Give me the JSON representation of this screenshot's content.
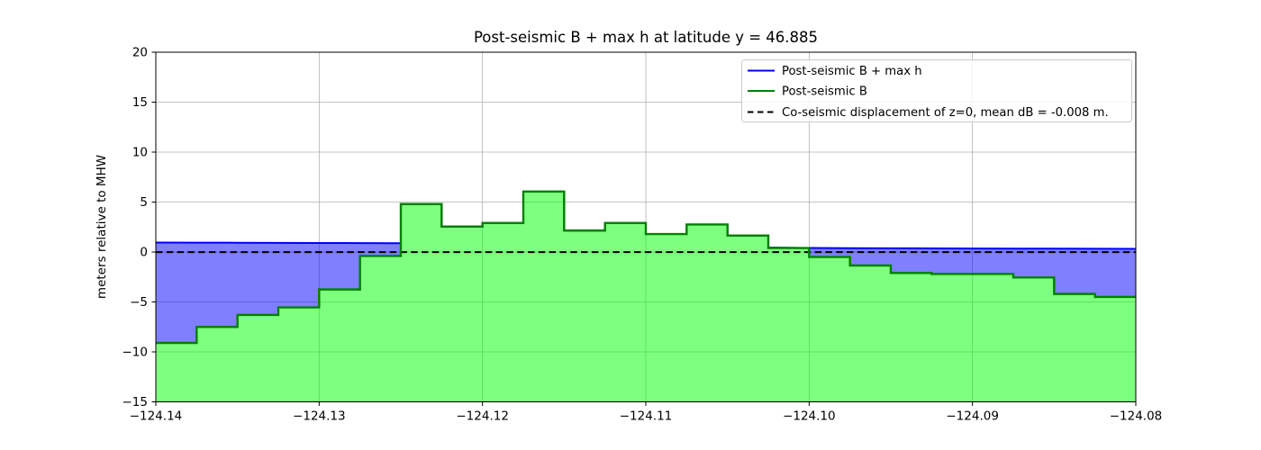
{
  "chart_data": {
    "type": "area",
    "title": "Post-seismic B + max h at latitude y = 46.885",
    "xlabel": "",
    "ylabel": "meters relative to MHW",
    "xlim": [
      -124.14,
      -124.08
    ],
    "ylim": [
      -15,
      20
    ],
    "grid": true,
    "x_ticks": [
      {
        "v": -124.14,
        "label": "−124.14"
      },
      {
        "v": -124.13,
        "label": "−124.13"
      },
      {
        "v": -124.12,
        "label": "−124.12"
      },
      {
        "v": -124.11,
        "label": "−124.11"
      },
      {
        "v": -124.1,
        "label": "−124.10"
      },
      {
        "v": -124.09,
        "label": "−124.09"
      },
      {
        "v": -124.08,
        "label": "−124.08"
      }
    ],
    "y_ticks": [
      {
        "v": 20,
        "label": "20"
      },
      {
        "v": 15,
        "label": "15"
      },
      {
        "v": 10,
        "label": "10"
      },
      {
        "v": 5,
        "label": "5"
      },
      {
        "v": 0,
        "label": "0"
      },
      {
        "v": -5,
        "label": "−5"
      },
      {
        "v": -10,
        "label": "−10"
      },
      {
        "v": -15,
        "label": "−15"
      }
    ],
    "legend": {
      "position": "upper right",
      "entries": [
        {
          "label": "Post-seismic B + max h",
          "color": "#0000ff",
          "style": "solid"
        },
        {
          "label": "Post-seismic B",
          "color": "#008000",
          "style": "solid"
        },
        {
          "label": "Co-seismic displacement of z=0, mean dB = -0.008 m.",
          "color": "#000000",
          "style": "dashed"
        }
      ]
    },
    "series": {
      "post_seismic_B": {
        "name": "Post-seismic B",
        "x_start": -124.14,
        "step_width": 0.0025,
        "values": [
          -9.1,
          -7.5,
          -6.3,
          -5.55,
          -3.75,
          -0.4,
          4.8,
          2.55,
          2.9,
          6.05,
          2.15,
          2.9,
          1.8,
          2.75,
          1.65,
          0.4,
          -0.5,
          -1.35,
          -2.1,
          -2.2,
          -2.2,
          -2.55,
          -4.2,
          -4.5
        ]
      },
      "B_plus_max_h_waterline": {
        "name": "Post-seismic B + max h",
        "x": [
          -124.14,
          -124.125,
          -124.1,
          -124.09,
          -124.08
        ],
        "y": [
          0.95,
          0.88,
          0.4,
          0.35,
          0.32
        ]
      },
      "coseismic_displacement": {
        "name": "Co-seismic displacement of z=0",
        "y": -0.008,
        "mean_dB_m": -0.008
      }
    },
    "colors": {
      "blue_line": "#0000ff",
      "blue_fill": "rgba(0,0,255,0.5)",
      "green_line": "#008000",
      "green_fill": "rgba(0,255,0,0.5)",
      "dashed_line": "#000000",
      "grid": "#b0b0b0",
      "spine": "#000000",
      "legend_border": "#cccccc"
    }
  }
}
